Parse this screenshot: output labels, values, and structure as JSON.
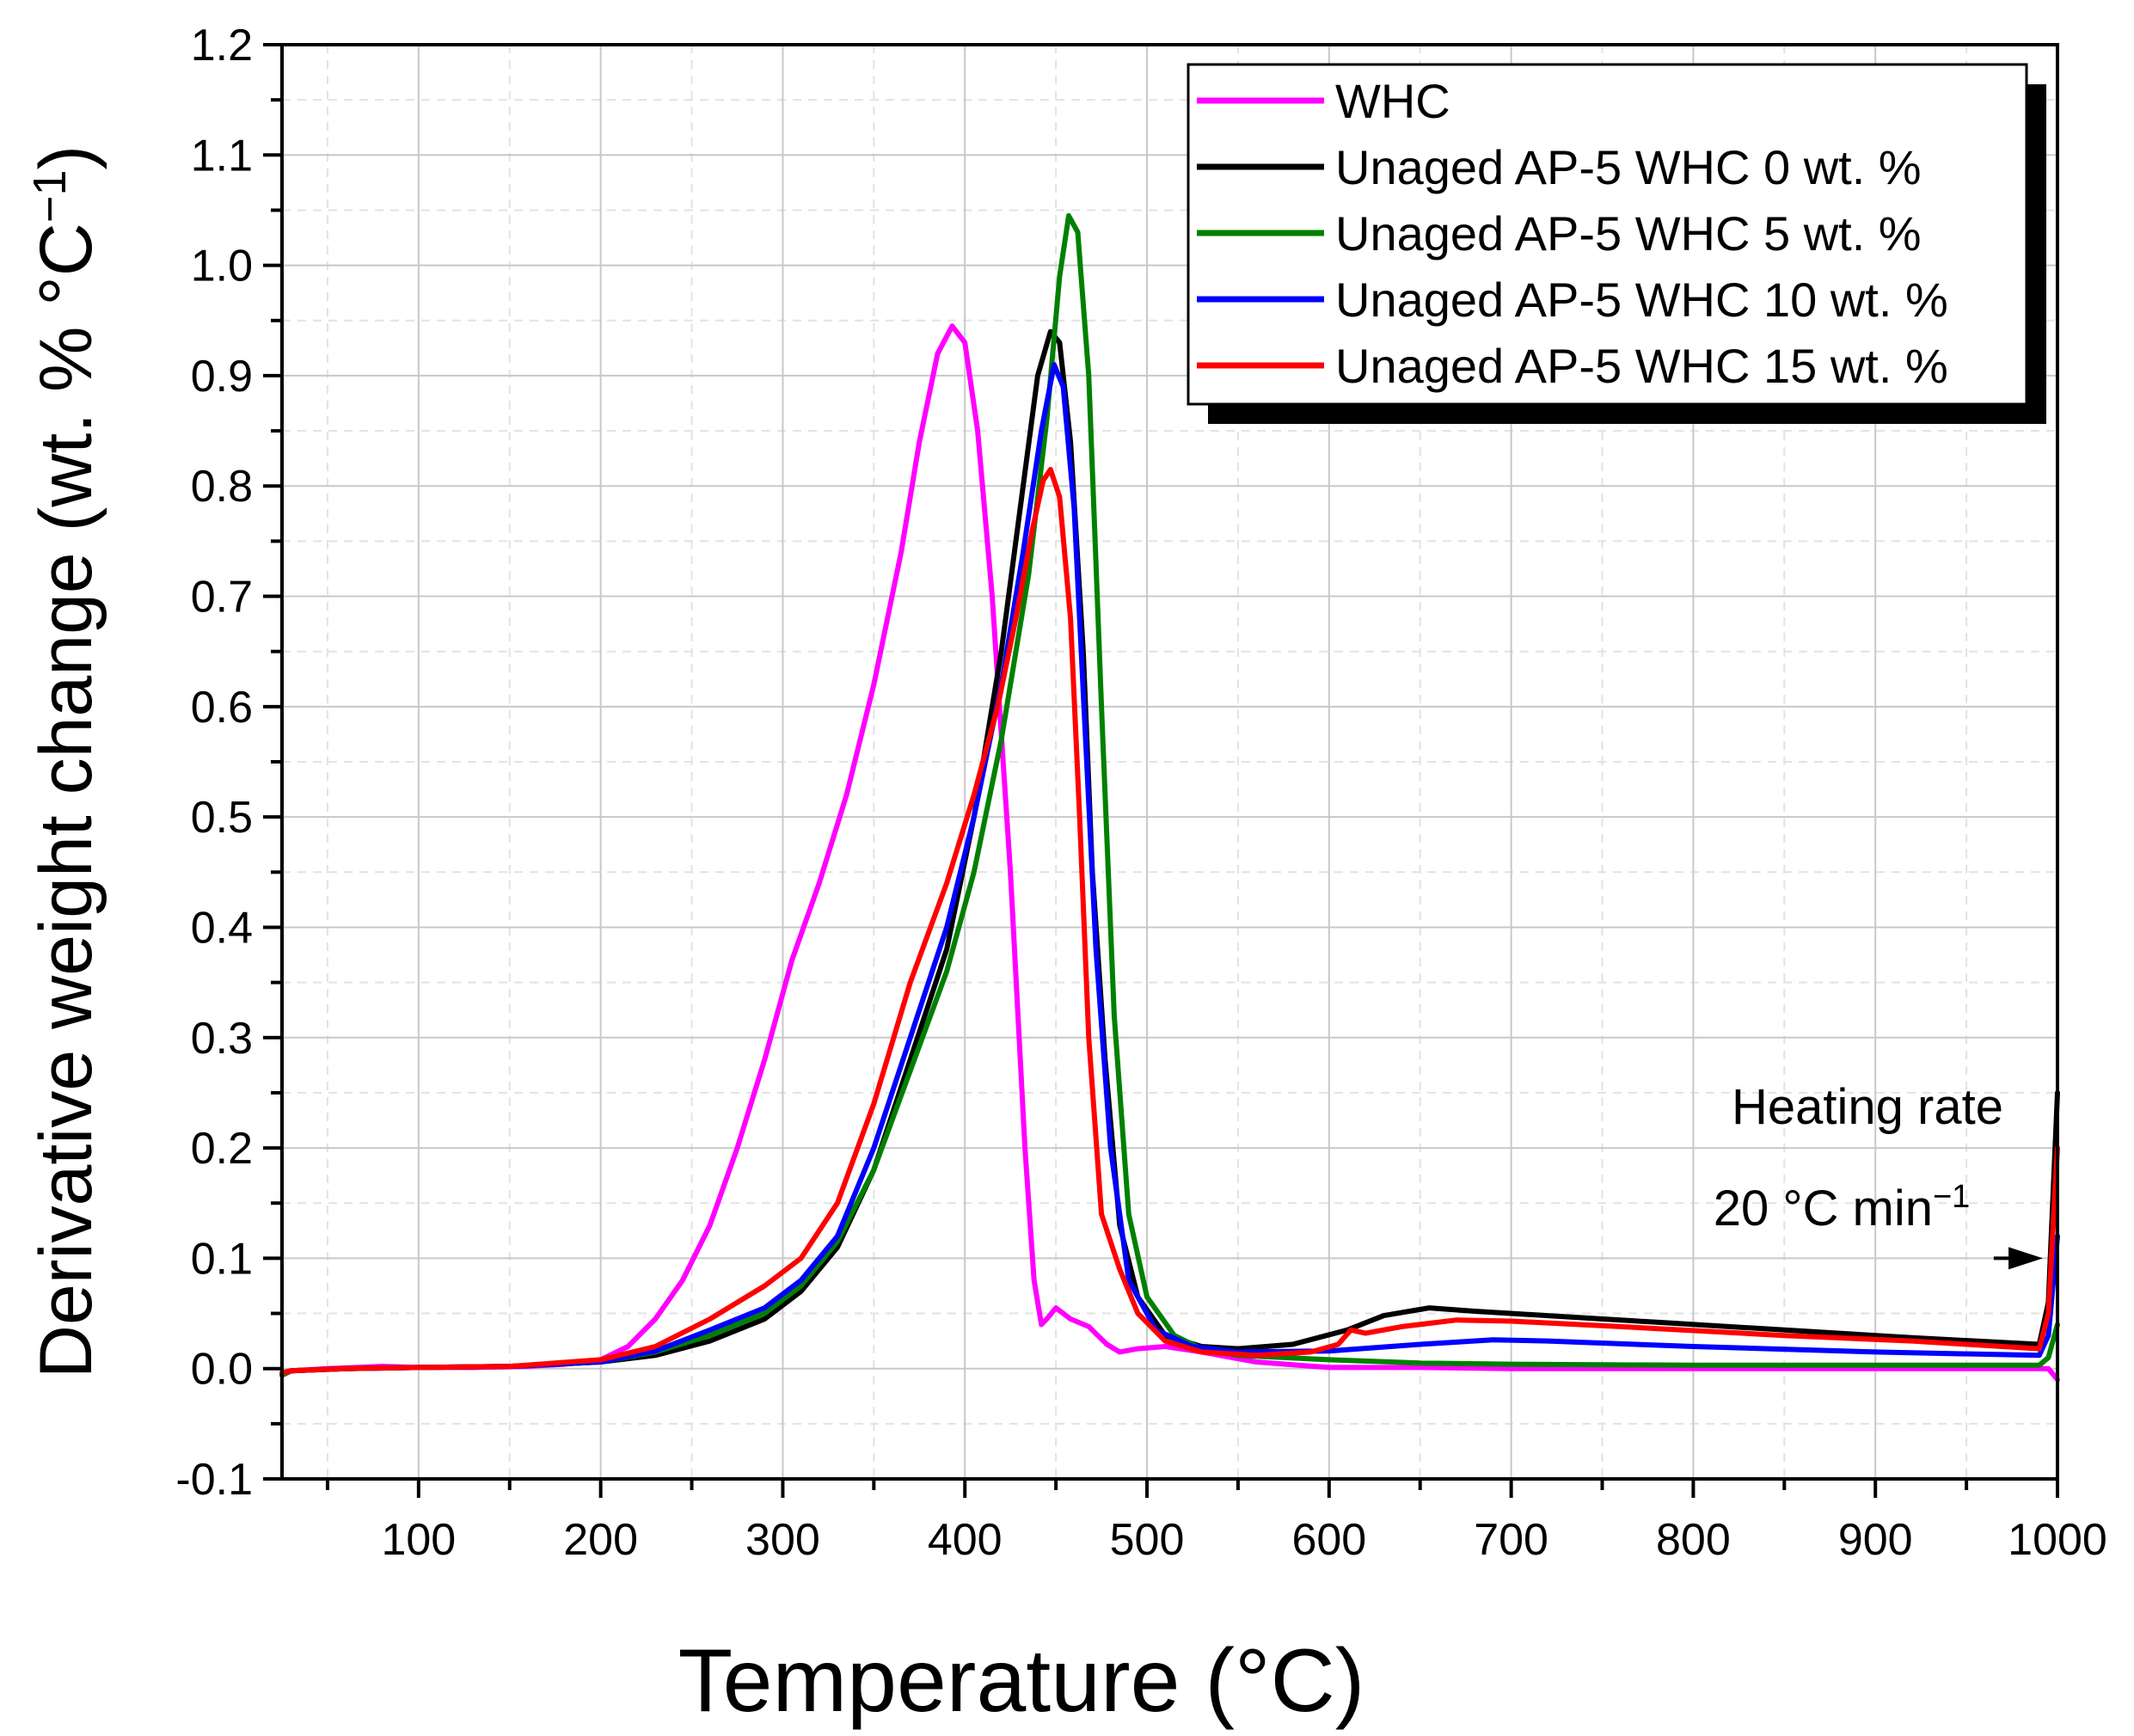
{
  "chart_data": {
    "type": "line",
    "title": "",
    "xlabel": "Temperature (°C)",
    "ylabel": "Derivative weight change (wt. % °C",
    "ylabel_superscript": "−1",
    "ylabel_close": ")",
    "xlim": [
      25,
      1000
    ],
    "ylim": [
      -0.1,
      1.2
    ],
    "x_ticks": [
      100,
      200,
      300,
      400,
      500,
      600,
      700,
      800,
      900,
      1000
    ],
    "x_tick_labels": [
      "100",
      "200",
      "300",
      "400",
      "500",
      "600",
      "700",
      "800",
      "900",
      "1000"
    ],
    "y_ticks": [
      -0.1,
      0.0,
      0.1,
      0.2,
      0.3,
      0.4,
      0.5,
      0.6,
      0.7,
      0.8,
      0.9,
      1.0,
      1.1,
      1.2
    ],
    "y_tick_labels": [
      "-0.1",
      "0.0",
      "0.1",
      "0.2",
      "0.3",
      "0.4",
      "0.5",
      "0.6",
      "0.7",
      "0.8",
      "0.9",
      "1.0",
      "1.1",
      "1.2"
    ],
    "grid": true,
    "legend_position": "top-right",
    "annotations": {
      "line1": "Heating rate",
      "line2": "20 °C min",
      "line2_superscript": "−1",
      "arrow_from": [
        965,
        0.1
      ],
      "arrow_to": [
        992,
        0.1
      ]
    },
    "series": [
      {
        "name": "WHC",
        "color": "#ff00ff",
        "points": [
          [
            25,
            -0.006
          ],
          [
            30,
            -0.002
          ],
          [
            50,
            0
          ],
          [
            80,
            0.002
          ],
          [
            100,
            0.001
          ],
          [
            130,
            0.001
          ],
          [
            160,
            0.002
          ],
          [
            180,
            0.004
          ],
          [
            200,
            0.008
          ],
          [
            215,
            0.02
          ],
          [
            230,
            0.045
          ],
          [
            245,
            0.08
          ],
          [
            260,
            0.13
          ],
          [
            275,
            0.2
          ],
          [
            290,
            0.28
          ],
          [
            305,
            0.37
          ],
          [
            320,
            0.44
          ],
          [
            335,
            0.52
          ],
          [
            350,
            0.62
          ],
          [
            365,
            0.74
          ],
          [
            375,
            0.84
          ],
          [
            385,
            0.92
          ],
          [
            393,
            0.945
          ],
          [
            400,
            0.93
          ],
          [
            407,
            0.85
          ],
          [
            415,
            0.7
          ],
          [
            425,
            0.45
          ],
          [
            433,
            0.2
          ],
          [
            438,
            0.08
          ],
          [
            442,
            0.04
          ],
          [
            445,
            0.045
          ],
          [
            450,
            0.055
          ],
          [
            458,
            0.045
          ],
          [
            468,
            0.038
          ],
          [
            478,
            0.022
          ],
          [
            485,
            0.015
          ],
          [
            495,
            0.018
          ],
          [
            510,
            0.02
          ],
          [
            530,
            0.015
          ],
          [
            560,
            0.006
          ],
          [
            600,
            0.001
          ],
          [
            650,
            0.001
          ],
          [
            700,
            0.0
          ],
          [
            800,
            0.0
          ],
          [
            900,
            0.0
          ],
          [
            990,
            0.0
          ],
          [
            995,
            0.0
          ],
          [
            1000,
            -0.01
          ]
        ]
      },
      {
        "name": "Unaged AP-5 WHC 0 wt. %",
        "color": "#000000",
        "points": [
          [
            25,
            -0.004
          ],
          [
            30,
            -0.002
          ],
          [
            60,
            0
          ],
          [
            100,
            0.001
          ],
          [
            150,
            0.002
          ],
          [
            200,
            0.006
          ],
          [
            230,
            0.012
          ],
          [
            260,
            0.025
          ],
          [
            290,
            0.045
          ],
          [
            310,
            0.07
          ],
          [
            330,
            0.11
          ],
          [
            350,
            0.18
          ],
          [
            370,
            0.28
          ],
          [
            390,
            0.38
          ],
          [
            405,
            0.5
          ],
          [
            420,
            0.65
          ],
          [
            432,
            0.8
          ],
          [
            440,
            0.9
          ],
          [
            447,
            0.94
          ],
          [
            452,
            0.93
          ],
          [
            458,
            0.84
          ],
          [
            465,
            0.65
          ],
          [
            470,
            0.45
          ],
          [
            477,
            0.28
          ],
          [
            485,
            0.13
          ],
          [
            495,
            0.065
          ],
          [
            510,
            0.03
          ],
          [
            530,
            0.02
          ],
          [
            550,
            0.018
          ],
          [
            580,
            0.022
          ],
          [
            610,
            0.035
          ],
          [
            630,
            0.048
          ],
          [
            655,
            0.055
          ],
          [
            680,
            0.052
          ],
          [
            720,
            0.048
          ],
          [
            780,
            0.042
          ],
          [
            850,
            0.035
          ],
          [
            920,
            0.028
          ],
          [
            990,
            0.022
          ],
          [
            995,
            0.06
          ],
          [
            1000,
            0.25
          ]
        ]
      },
      {
        "name": "Unaged AP-5 WHC 5 wt. %",
        "color": "#008000",
        "points": [
          [
            25,
            -0.006
          ],
          [
            30,
            -0.002
          ],
          [
            60,
            0
          ],
          [
            100,
            0.001
          ],
          [
            150,
            0.002
          ],
          [
            200,
            0.006
          ],
          [
            230,
            0.015
          ],
          [
            260,
            0.03
          ],
          [
            290,
            0.05
          ],
          [
            310,
            0.075
          ],
          [
            330,
            0.115
          ],
          [
            350,
            0.18
          ],
          [
            370,
            0.27
          ],
          [
            390,
            0.36
          ],
          [
            405,
            0.45
          ],
          [
            420,
            0.57
          ],
          [
            435,
            0.72
          ],
          [
            445,
            0.86
          ],
          [
            452,
            0.99
          ],
          [
            457,
            1.045
          ],
          [
            462,
            1.03
          ],
          [
            468,
            0.9
          ],
          [
            475,
            0.6
          ],
          [
            482,
            0.32
          ],
          [
            490,
            0.14
          ],
          [
            500,
            0.065
          ],
          [
            515,
            0.03
          ],
          [
            530,
            0.018
          ],
          [
            550,
            0.012
          ],
          [
            600,
            0.008
          ],
          [
            650,
            0.005
          ],
          [
            700,
            0.004
          ],
          [
            800,
            0.003
          ],
          [
            900,
            0.003
          ],
          [
            990,
            0.003
          ],
          [
            995,
            0.01
          ],
          [
            1000,
            0.04
          ]
        ]
      },
      {
        "name": "Unaged AP-5 WHC 10 wt. %",
        "color": "#0000ff",
        "points": [
          [
            25,
            -0.004
          ],
          [
            30,
            -0.002
          ],
          [
            60,
            0
          ],
          [
            100,
            0.001
          ],
          [
            150,
            0.002
          ],
          [
            200,
            0.006
          ],
          [
            230,
            0.016
          ],
          [
            260,
            0.035
          ],
          [
            290,
            0.055
          ],
          [
            310,
            0.08
          ],
          [
            330,
            0.12
          ],
          [
            350,
            0.2
          ],
          [
            370,
            0.3
          ],
          [
            390,
            0.4
          ],
          [
            405,
            0.5
          ],
          [
            420,
            0.62
          ],
          [
            432,
            0.74
          ],
          [
            442,
            0.85
          ],
          [
            449,
            0.91
          ],
          [
            454,
            0.89
          ],
          [
            460,
            0.78
          ],
          [
            466,
            0.58
          ],
          [
            472,
            0.38
          ],
          [
            480,
            0.2
          ],
          [
            490,
            0.08
          ],
          [
            505,
            0.035
          ],
          [
            525,
            0.02
          ],
          [
            550,
            0.015
          ],
          [
            600,
            0.016
          ],
          [
            650,
            0.022
          ],
          [
            690,
            0.026
          ],
          [
            720,
            0.025
          ],
          [
            800,
            0.02
          ],
          [
            900,
            0.015
          ],
          [
            990,
            0.012
          ],
          [
            995,
            0.03
          ],
          [
            1000,
            0.12
          ]
        ]
      },
      {
        "name": "Unaged AP-5 WHC 15 wt. %",
        "color": "#ff0000",
        "points": [
          [
            25,
            -0.004
          ],
          [
            30,
            -0.002
          ],
          [
            60,
            0
          ],
          [
            100,
            0.001
          ],
          [
            150,
            0.002
          ],
          [
            200,
            0.008
          ],
          [
            230,
            0.02
          ],
          [
            260,
            0.045
          ],
          [
            290,
            0.075
          ],
          [
            310,
            0.1
          ],
          [
            330,
            0.15
          ],
          [
            350,
            0.24
          ],
          [
            370,
            0.35
          ],
          [
            390,
            0.44
          ],
          [
            405,
            0.52
          ],
          [
            418,
            0.6
          ],
          [
            428,
            0.68
          ],
          [
            437,
            0.76
          ],
          [
            443,
            0.805
          ],
          [
            447,
            0.815
          ],
          [
            452,
            0.79
          ],
          [
            458,
            0.68
          ],
          [
            463,
            0.5
          ],
          [
            468,
            0.3
          ],
          [
            475,
            0.14
          ],
          [
            485,
            0.09
          ],
          [
            495,
            0.05
          ],
          [
            510,
            0.025
          ],
          [
            530,
            0.015
          ],
          [
            560,
            0.012
          ],
          [
            590,
            0.015
          ],
          [
            605,
            0.022
          ],
          [
            612,
            0.035
          ],
          [
            620,
            0.032
          ],
          [
            640,
            0.038
          ],
          [
            670,
            0.044
          ],
          [
            700,
            0.043
          ],
          [
            760,
            0.038
          ],
          [
            850,
            0.03
          ],
          [
            920,
            0.025
          ],
          [
            990,
            0.018
          ],
          [
            995,
            0.05
          ],
          [
            1000,
            0.2
          ]
        ]
      }
    ]
  }
}
